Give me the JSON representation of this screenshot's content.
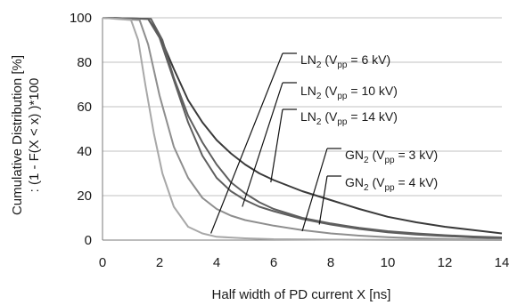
{
  "chart_data": {
    "type": "line",
    "xlabel": "Half width of PD current X [ns]",
    "ylabel_line1": "Cumulative Distribution [%]",
    "ylabel_line2": ": (1 - F(X < x) )*100",
    "xlim": [
      0,
      14
    ],
    "ylim": [
      0,
      100
    ],
    "x_ticks": [
      0,
      2,
      4,
      6,
      8,
      10,
      12,
      14
    ],
    "y_ticks": [
      0,
      20,
      40,
      60,
      80,
      100
    ],
    "grid": "horizontal",
    "colors": {
      "dark": "#3a3a3a",
      "mid": "#5e5e5e",
      "light": "#8e8e8e",
      "lighter": "#a8a8a8",
      "grid": "#c0c0c0"
    },
    "series": [
      {
        "color": "dark",
        "points": [
          [
            0,
            100
          ],
          [
            1.6,
            99.5
          ],
          [
            2.0,
            92
          ],
          [
            2.5,
            77
          ],
          [
            3,
            63
          ],
          [
            3.5,
            53
          ],
          [
            4,
            45
          ],
          [
            4.5,
            39
          ],
          [
            5,
            34
          ],
          [
            5.5,
            30
          ],
          [
            6,
            27
          ],
          [
            7,
            22
          ],
          [
            8,
            18
          ],
          [
            9,
            14
          ],
          [
            10,
            10.5
          ],
          [
            11,
            8
          ],
          [
            12,
            6
          ],
          [
            13,
            4.5
          ],
          [
            14,
            3
          ]
        ]
      },
      {
        "color": "mid",
        "points": [
          [
            0,
            100
          ],
          [
            1.6,
            99.5
          ],
          [
            2.0,
            91
          ],
          [
            2.5,
            72
          ],
          [
            3,
            53
          ],
          [
            3.5,
            38
          ],
          [
            4,
            28
          ],
          [
            4.5,
            22
          ],
          [
            5,
            18
          ],
          [
            5.5,
            15
          ],
          [
            6,
            13
          ],
          [
            7,
            9.5
          ],
          [
            8,
            7
          ],
          [
            9,
            5
          ],
          [
            10,
            3.5
          ],
          [
            11,
            2.5
          ],
          [
            12,
            1.8
          ],
          [
            13,
            1.2
          ],
          [
            14,
            0.8
          ]
        ]
      },
      {
        "color": "mid",
        "points": [
          [
            0,
            100
          ],
          [
            1.7,
            99.5
          ],
          [
            2.1,
            90
          ],
          [
            2.5,
            73
          ],
          [
            3,
            56
          ],
          [
            3.5,
            44
          ],
          [
            4,
            34
          ],
          [
            4.5,
            26
          ],
          [
            5,
            21
          ],
          [
            5.5,
            17
          ],
          [
            6,
            14
          ],
          [
            7,
            10
          ],
          [
            8,
            7.5
          ],
          [
            9,
            5.5
          ],
          [
            10,
            4
          ],
          [
            11,
            3
          ],
          [
            12,
            2.2
          ],
          [
            13,
            1.6
          ],
          [
            14,
            1.2
          ]
        ]
      },
      {
        "color": "light",
        "points": [
          [
            0,
            100
          ],
          [
            1.3,
            99
          ],
          [
            1.6,
            88
          ],
          [
            2.0,
            65
          ],
          [
            2.5,
            42
          ],
          [
            3,
            28
          ],
          [
            3.5,
            19
          ],
          [
            4,
            14
          ],
          [
            4.5,
            11
          ],
          [
            5,
            9
          ],
          [
            6,
            6.5
          ],
          [
            7,
            4.5
          ],
          [
            8,
            3
          ],
          [
            9,
            2
          ],
          [
            10,
            1.3
          ],
          [
            11,
            0.8
          ],
          [
            12,
            0.5
          ],
          [
            13,
            0.3
          ],
          [
            14,
            0.2
          ]
        ]
      },
      {
        "color": "lighter",
        "points": [
          [
            0,
            100
          ],
          [
            1.0,
            99
          ],
          [
            1.25,
            90
          ],
          [
            1.5,
            70
          ],
          [
            1.8,
            48
          ],
          [
            2.1,
            30
          ],
          [
            2.5,
            15
          ],
          [
            3,
            6
          ],
          [
            3.5,
            3
          ],
          [
            4,
            1.5
          ],
          [
            5,
            0.8
          ],
          [
            6,
            0.4
          ],
          [
            8,
            0.2
          ],
          [
            10,
            0.1
          ],
          [
            14,
            0
          ]
        ]
      }
    ],
    "annotations": [
      {
        "base": "LN",
        "sub1": "2",
        "mid": " (V",
        "sub2": "pp",
        "rest": " = 6 kV)",
        "arrow_to": [
          3.8,
          3
        ],
        "anchor": "right"
      },
      {
        "base": "LN",
        "sub1": "2",
        "mid": " (V",
        "sub2": "pp",
        "rest": " = 10 kV)",
        "arrow_to": [
          4.9,
          15
        ],
        "anchor": "right"
      },
      {
        "base": "LN",
        "sub1": "2",
        "mid": " (V",
        "sub2": "pp",
        "rest": " = 14 kV)",
        "arrow_to": [
          5.9,
          26
        ],
        "anchor": "right"
      },
      {
        "base": "GN",
        "sub1": "2",
        "mid": " (V",
        "sub2": "pp",
        "rest": " = 3 kV)",
        "arrow_to": [
          7.0,
          4
        ],
        "anchor": "right"
      },
      {
        "base": "GN",
        "sub1": "2",
        "mid": " (V",
        "sub2": "pp",
        "rest": " = 4 kV)",
        "arrow_to": [
          7.6,
          7
        ],
        "anchor": "right"
      }
    ]
  }
}
